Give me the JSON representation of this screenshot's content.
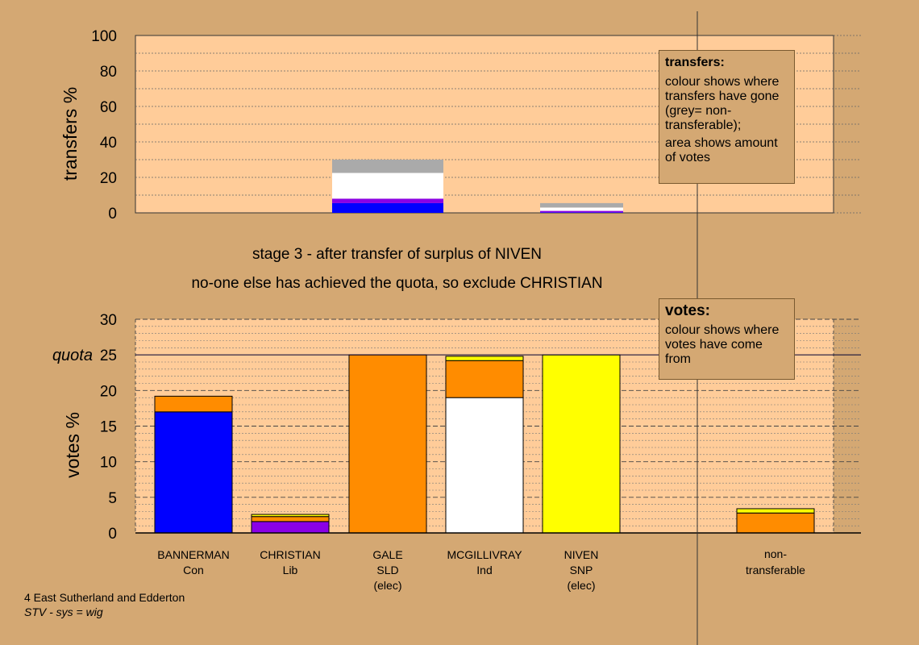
{
  "stage_text": {
    "line1": "stage 3 - after transfer of surplus of NIVEN",
    "line2": "no-one else has achieved the quota, so exclude CHRISTIAN"
  },
  "legend_transfers": {
    "title": "transfers:",
    "text1": "colour shows where transfers have gone (grey= non-transferable);",
    "text2": "area shows amount of votes"
  },
  "legend_votes": {
    "title": "votes:",
    "text1": "colour shows where votes have come from"
  },
  "footer": {
    "line1": "4 East Sutherland and Edderton",
    "line2": "STV - sys = wig"
  },
  "colors": {
    "background": "#d4a873",
    "plot_bg": "#ffcc99",
    "Con": "#0000ff",
    "Lib": "#8a00e6",
    "SLD": "#ff8c00",
    "Ind": "#ffffff",
    "SNP": "#ffff00",
    "nontransferable": "#aaaaaa"
  },
  "chart_data": [
    {
      "type": "bar",
      "name": "transfers",
      "ylabel": "transfers %",
      "ylim": [
        0,
        100
      ],
      "yticks": [
        0,
        20,
        40,
        60,
        80,
        100
      ],
      "bars": [
        {
          "x_index": 2,
          "width": "wide",
          "segments": [
            {
              "color_key": "Con",
              "value": 5.5
            },
            {
              "color_key": "Lib",
              "value": 2.5
            },
            {
              "color_key": "Ind",
              "value": 14.5
            },
            {
              "color_key": "nontransferable",
              "value": 7.5
            }
          ]
        },
        {
          "x_index": 4,
          "width": "narrow",
          "segments": [
            {
              "color_key": "Con",
              "value": 0.3
            },
            {
              "color_key": "Lib",
              "value": 0.8
            },
            {
              "color_key": "Ind",
              "value": 1.9
            },
            {
              "color_key": "nontransferable",
              "value": 2.5
            }
          ]
        }
      ]
    },
    {
      "type": "bar",
      "name": "votes",
      "ylabel": "votes %",
      "ylim": [
        0,
        30
      ],
      "yticks": [
        0,
        5,
        10,
        15,
        20,
        25,
        30
      ],
      "quota": 25,
      "quota_label": "quota",
      "categories": [
        {
          "name": "BANNERMAN",
          "party": "Con",
          "note": ""
        },
        {
          "name": "CHRISTIAN",
          "party": "Lib",
          "note": ""
        },
        {
          "name": "GALE",
          "party": "SLD",
          "note": "(elec)"
        },
        {
          "name": "MCGILLIVRAY",
          "party": "Ind",
          "note": ""
        },
        {
          "name": "NIVEN",
          "party": "SNP",
          "note": "(elec)"
        },
        {
          "name": "non-transferable",
          "party": "",
          "note": ""
        }
      ],
      "bars": [
        {
          "index": 0,
          "segments": [
            {
              "color_key": "Con",
              "value": 17.0
            },
            {
              "color_key": "SLD",
              "value": 2.2
            }
          ]
        },
        {
          "index": 1,
          "segments": [
            {
              "color_key": "Lib",
              "value": 1.6
            },
            {
              "color_key": "SLD",
              "value": 0.7
            },
            {
              "color_key": "SNP",
              "value": 0.3
            }
          ]
        },
        {
          "index": 2,
          "segments": [
            {
              "color_key": "SLD",
              "value": 25.0
            }
          ]
        },
        {
          "index": 3,
          "segments": [
            {
              "color_key": "Ind",
              "value": 19.0
            },
            {
              "color_key": "SLD",
              "value": 5.2
            },
            {
              "color_key": "SNP",
              "value": 0.6
            }
          ]
        },
        {
          "index": 4,
          "segments": [
            {
              "color_key": "SNP",
              "value": 25.0
            }
          ]
        },
        {
          "index": 5,
          "segments": [
            {
              "color_key": "SLD",
              "value": 2.8
            },
            {
              "color_key": "SNP",
              "value": 0.6
            }
          ]
        }
      ]
    }
  ]
}
